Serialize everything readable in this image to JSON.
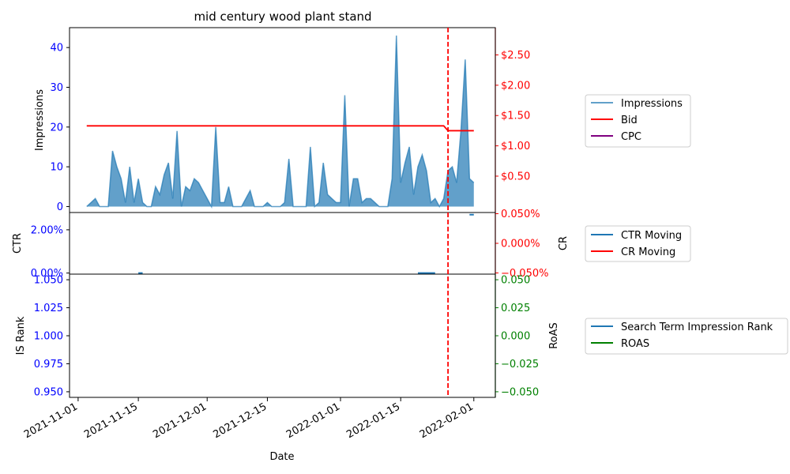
{
  "chart_data": {
    "type": "area",
    "title": "mid century wood plant stand",
    "xlabel": "Date",
    "x_ticks": [
      "2021-11-01",
      "2021-11-15",
      "2021-12-01",
      "2021-12-15",
      "2022-01-01",
      "2022-01-15",
      "2022-02-01"
    ],
    "x_range": [
      "2021-10-30",
      "2022-02-06"
    ],
    "event_line_date": "2022-01-26",
    "panels": [
      {
        "id": "impressions",
        "left_label": "Impressions",
        "left_range": [
          -1.5,
          45
        ],
        "left_ticks": [
          0,
          10,
          20,
          30,
          40
        ],
        "left_tick_labels": [
          "0",
          "10",
          "20",
          "30",
          "40"
        ],
        "right_range": [
          -0.1,
          2.95
        ],
        "right_ticks": [
          0.5,
          1.0,
          1.5,
          2.0,
          2.5
        ],
        "right_tick_labels": [
          "$0.50",
          "$1.00",
          "$1.50",
          "$2.00",
          "$2.50"
        ],
        "legend": [
          "Impressions",
          "Bid",
          "CPC"
        ],
        "impressions": [
          [
            "2021-11-03",
            0
          ],
          [
            "2021-11-04",
            1
          ],
          [
            "2021-11-05",
            2
          ],
          [
            "2021-11-06",
            0
          ],
          [
            "2021-11-07",
            0
          ],
          [
            "2021-11-08",
            0
          ],
          [
            "2021-11-09",
            14
          ],
          [
            "2021-11-10",
            10
          ],
          [
            "2021-11-11",
            7
          ],
          [
            "2021-11-12",
            1
          ],
          [
            "2021-11-13",
            10
          ],
          [
            "2021-11-14",
            1
          ],
          [
            "2021-11-15",
            7
          ],
          [
            "2021-11-16",
            1
          ],
          [
            "2021-11-17",
            0
          ],
          [
            "2021-11-18",
            0
          ],
          [
            "2021-11-19",
            5
          ],
          [
            "2021-11-20",
            3
          ],
          [
            "2021-11-21",
            8
          ],
          [
            "2021-11-22",
            11
          ],
          [
            "2021-11-23",
            2
          ],
          [
            "2021-11-24",
            19
          ],
          [
            "2021-11-25",
            0
          ],
          [
            "2021-11-26",
            5
          ],
          [
            "2021-11-27",
            4
          ],
          [
            "2021-11-28",
            7
          ],
          [
            "2021-11-29",
            6
          ],
          [
            "2021-11-30",
            4
          ],
          [
            "2021-12-01",
            2
          ],
          [
            "2021-12-02",
            0
          ],
          [
            "2021-12-03",
            20
          ],
          [
            "2021-12-04",
            1
          ],
          [
            "2021-12-05",
            1
          ],
          [
            "2021-12-06",
            5
          ],
          [
            "2021-12-07",
            0
          ],
          [
            "2021-12-08",
            0
          ],
          [
            "2021-12-09",
            0
          ],
          [
            "2021-12-10",
            2
          ],
          [
            "2021-12-11",
            4
          ],
          [
            "2021-12-12",
            0
          ],
          [
            "2021-12-13",
            0
          ],
          [
            "2021-12-14",
            0
          ],
          [
            "2021-12-15",
            1
          ],
          [
            "2021-12-16",
            0
          ],
          [
            "2021-12-17",
            0
          ],
          [
            "2021-12-18",
            0
          ],
          [
            "2021-12-19",
            1
          ],
          [
            "2021-12-20",
            12
          ],
          [
            "2021-12-21",
            0
          ],
          [
            "2021-12-22",
            0
          ],
          [
            "2021-12-23",
            0
          ],
          [
            "2021-12-24",
            0
          ],
          [
            "2021-12-25",
            15
          ],
          [
            "2021-12-26",
            0
          ],
          [
            "2021-12-27",
            1
          ],
          [
            "2021-12-28",
            11
          ],
          [
            "2021-12-29",
            3
          ],
          [
            "2021-12-30",
            2
          ],
          [
            "2021-12-31",
            1
          ],
          [
            "2022-01-01",
            1
          ],
          [
            "2022-01-02",
            28
          ],
          [
            "2022-01-03",
            0
          ],
          [
            "2022-01-04",
            7
          ],
          [
            "2022-01-05",
            7
          ],
          [
            "2022-01-06",
            1
          ],
          [
            "2022-01-07",
            2
          ],
          [
            "2022-01-08",
            2
          ],
          [
            "2022-01-09",
            1
          ],
          [
            "2022-01-10",
            0
          ],
          [
            "2022-01-11",
            0
          ],
          [
            "2022-01-12",
            0
          ],
          [
            "2022-01-13",
            7
          ],
          [
            "2022-01-14",
            43
          ],
          [
            "2022-01-15",
            6
          ],
          [
            "2022-01-16",
            11
          ],
          [
            "2022-01-17",
            15
          ],
          [
            "2022-01-18",
            3
          ],
          [
            "2022-01-19",
            10
          ],
          [
            "2022-01-20",
            13
          ],
          [
            "2022-01-21",
            9
          ],
          [
            "2022-01-22",
            1
          ],
          [
            "2022-01-23",
            2
          ],
          [
            "2022-01-24",
            0
          ],
          [
            "2022-01-25",
            2
          ],
          [
            "2022-01-26",
            9
          ],
          [
            "2022-01-27",
            10
          ],
          [
            "2022-01-28",
            6
          ],
          [
            "2022-01-29",
            19
          ],
          [
            "2022-01-30",
            37
          ],
          [
            "2022-01-31",
            7
          ],
          [
            "2022-02-01",
            6
          ]
        ],
        "bid": [
          [
            "2021-11-03",
            1.33
          ],
          [
            "2022-01-25",
            1.33
          ],
          [
            "2022-01-26",
            1.25
          ],
          [
            "2022-02-01",
            1.25
          ]
        ]
      },
      {
        "id": "ctr",
        "left_label": "CTR",
        "right_label": "CR",
        "left_range": [
          -0.05,
          2.8
        ],
        "left_ticks": [
          0,
          2
        ],
        "left_tick_labels": [
          "0.00%",
          "2.00%"
        ],
        "right_range": [
          -0.052,
          0.052
        ],
        "right_ticks": [
          -0.05,
          0.0,
          0.05
        ],
        "right_tick_labels": [
          "−0.050%",
          "0.000%",
          "0.050%"
        ],
        "legend": [
          "CTR Moving",
          "CR Moving"
        ],
        "ctr_segments": [
          [
            [
              "2021-11-15",
              0
            ],
            [
              "2021-11-16",
              0
            ]
          ],
          [
            [
              "2022-01-19",
              0
            ],
            [
              "2022-01-23",
              0
            ]
          ],
          [
            [
              "2022-01-31",
              2.7
            ],
            [
              "2022-02-01",
              2.7
            ]
          ]
        ]
      },
      {
        "id": "rank",
        "left_label": "IS Rank",
        "right_label": "RoAS",
        "left_range": [
          0.945,
          1.055
        ],
        "left_ticks": [
          0.95,
          0.975,
          1.0,
          1.025,
          1.05
        ],
        "left_tick_labels": [
          "0.950",
          "0.975",
          "1.000",
          "1.025",
          "1.050"
        ],
        "right_range": [
          -0.055,
          0.055
        ],
        "right_ticks": [
          -0.05,
          -0.025,
          0.0,
          0.025,
          0.05
        ],
        "right_tick_labels": [
          "−0.050",
          "−0.025",
          "0.000",
          "0.025",
          "0.050"
        ],
        "legend": [
          "Search Term Impression Rank",
          "ROAS"
        ]
      }
    ]
  },
  "colors": {
    "impressions": "#1f77b4",
    "bid": "#ff0000",
    "cpc": "#800080",
    "ctr": "#1f77b4",
    "cr": "#ff0000",
    "rank": "#1f77b4",
    "roas": "#008000",
    "event_line": "#ff0000",
    "left_tick": "#0000ff",
    "cr_tick": "#ff0000",
    "roas_tick": "#008000"
  }
}
